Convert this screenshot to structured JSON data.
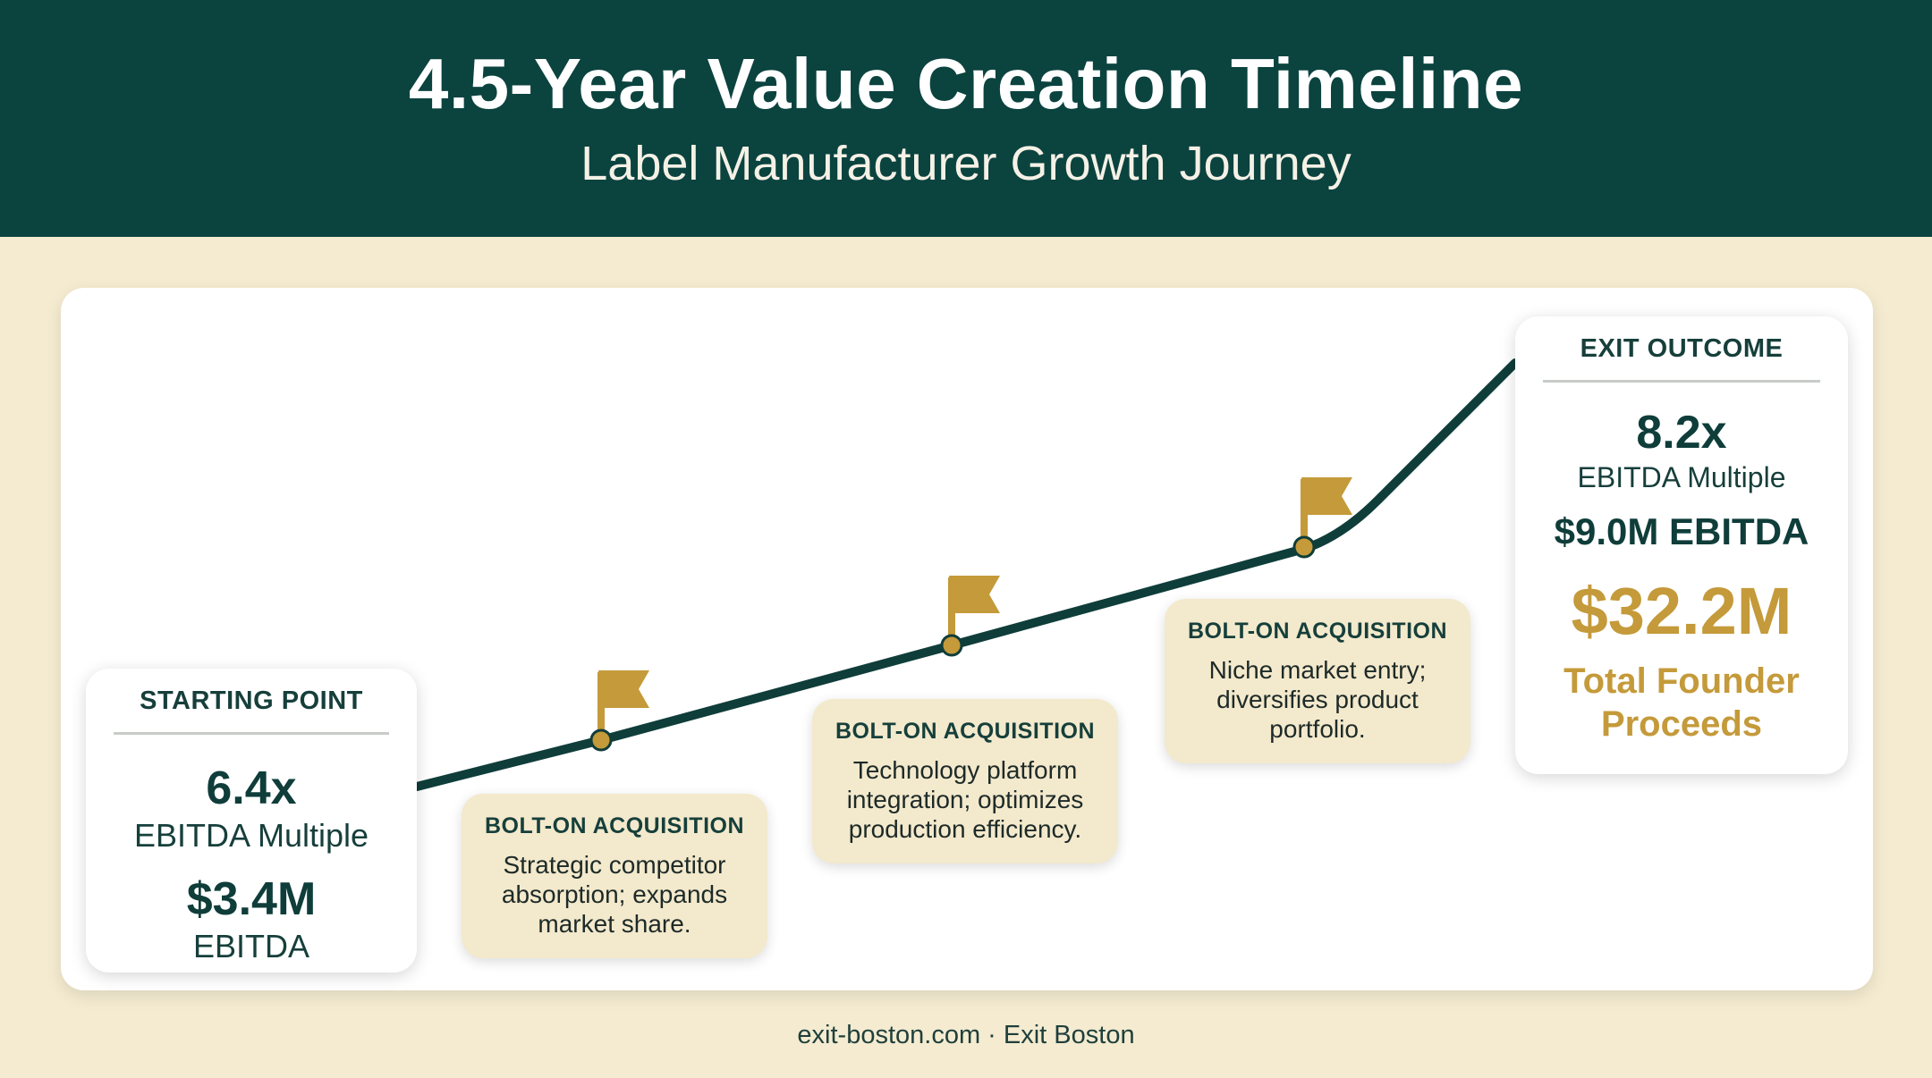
{
  "header": {
    "title": "4.5-Year Value Creation Timeline",
    "subtitle": "Label Manufacturer Growth Journey"
  },
  "colors": {
    "header_bg": "#0b433f",
    "page_bg": "#f4ebd0",
    "line": "#0f3d3a",
    "flag": "#c49a3a",
    "card_bg": "#ffffff",
    "acquisition_bg": "#f3e9cc",
    "accent_gold": "#c49a3a"
  },
  "starting_point": {
    "label": "STARTING POINT",
    "multiple": "6.4x",
    "multiple_label": "EBITDA Multiple",
    "ebitda": "$3.4M",
    "ebitda_label": "EBITDA"
  },
  "acquisitions": [
    {
      "label": "BOLT-ON ACQUISITION",
      "description": "Strategic competitor absorption; expands market share.",
      "icon": "flag-icon"
    },
    {
      "label": "BOLT-ON ACQUISITION",
      "description": "Technology platform integration; optimizes production efficiency.",
      "icon": "flag-icon"
    },
    {
      "label": "BOLT-ON ACQUISITION",
      "description": "Niche market entry; diversifies product portfolio.",
      "icon": "flag-icon"
    }
  ],
  "exit_outcome": {
    "label": "EXIT OUTCOME",
    "multiple": "8.2x",
    "multiple_label": "EBITDA Multiple",
    "ebitda": "$9.0M EBITDA",
    "proceeds": "$32.2M",
    "proceeds_label": "Total Founder Proceeds"
  },
  "footer": {
    "text": "exit-boston.com · Exit Boston"
  }
}
